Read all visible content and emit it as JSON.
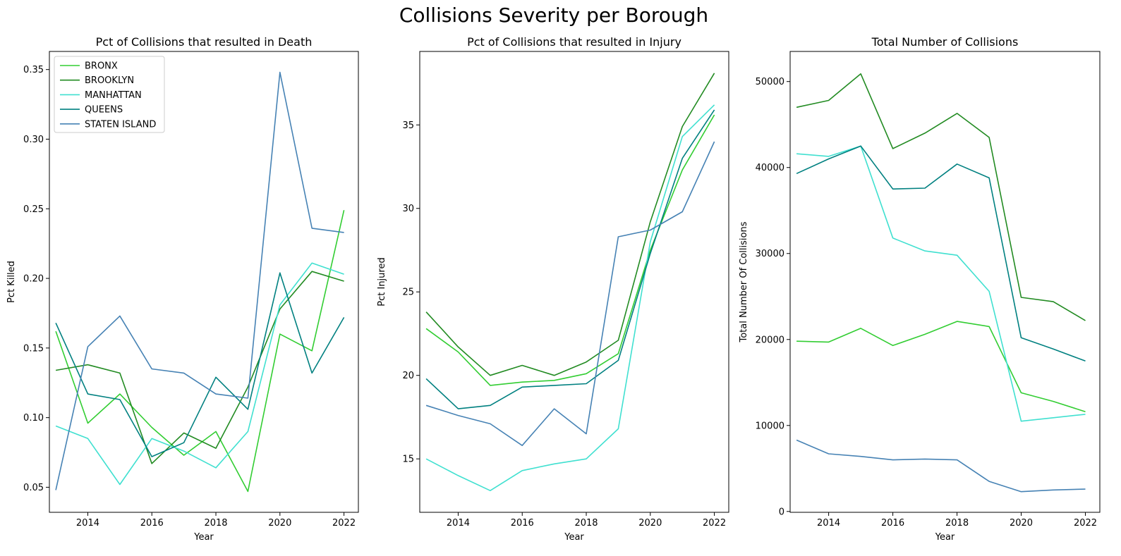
{
  "figure": {
    "title": "Collisions Severity per Borough"
  },
  "series_colors": {
    "BRONX": "#32cd32",
    "BROOKLYN": "#228b22",
    "MANHATTAN": "#40e0d0",
    "QUEENS": "#008080",
    "STATEN ISLAND": "#4682b4"
  },
  "chart_data": [
    {
      "type": "line",
      "title": "Pct of Collisions that resulted in Death",
      "xlabel": "Year",
      "ylabel": "Pct Killed",
      "xlim": [
        2012.8,
        2022.45
      ],
      "ylim": [
        0.032,
        0.363
      ],
      "xticks": [
        2014,
        2016,
        2018,
        2020,
        2022
      ],
      "yticks": [
        0.05,
        0.1,
        0.15,
        0.2,
        0.25,
        0.3,
        0.35
      ],
      "ytick_labels": [
        "0.05",
        "0.10",
        "0.15",
        "0.20",
        "0.25",
        "0.30",
        "0.35"
      ],
      "grid": false,
      "legend": "top-left",
      "x": [
        2013,
        2014,
        2015,
        2016,
        2017,
        2018,
        2019,
        2020,
        2021,
        2022
      ],
      "series": [
        {
          "name": "BRONX",
          "values": [
            0.162,
            0.096,
            0.117,
            0.093,
            0.073,
            0.09,
            0.047,
            0.16,
            0.148,
            0.249
          ]
        },
        {
          "name": "BROOKLYN",
          "values": [
            0.134,
            0.138,
            0.132,
            0.067,
            0.089,
            0.078,
            0.122,
            0.178,
            0.205,
            0.198
          ]
        },
        {
          "name": "MANHATTAN",
          "values": [
            0.094,
            0.085,
            0.052,
            0.085,
            0.076,
            0.064,
            0.09,
            0.181,
            0.211,
            0.203
          ]
        },
        {
          "name": "QUEENS",
          "values": [
            0.168,
            0.117,
            0.113,
            0.072,
            0.082,
            0.129,
            0.106,
            0.204,
            0.132,
            0.172
          ]
        },
        {
          "name": "STATEN ISLAND",
          "values": [
            0.048,
            0.151,
            0.173,
            0.135,
            0.132,
            0.117,
            0.114,
            0.348,
            0.236,
            0.233
          ]
        }
      ]
    },
    {
      "type": "line",
      "title": "Pct of Collisions that resulted in Injury",
      "xlabel": "Year",
      "ylabel": "Pct Injured",
      "xlim": [
        2012.8,
        2022.45
      ],
      "ylim": [
        11.8,
        39.4
      ],
      "xticks": [
        2014,
        2016,
        2018,
        2020,
        2022
      ],
      "yticks": [
        15,
        20,
        25,
        30,
        35
      ],
      "ytick_labels": [
        "15",
        "20",
        "25",
        "30",
        "35"
      ],
      "grid": false,
      "x": [
        2013,
        2014,
        2015,
        2016,
        2017,
        2018,
        2019,
        2020,
        2021,
        2022
      ],
      "series": [
        {
          "name": "BRONX",
          "values": [
            22.8,
            21.4,
            19.4,
            19.6,
            19.7,
            20.1,
            21.3,
            27.5,
            32.3,
            35.6
          ]
        },
        {
          "name": "BROOKLYN",
          "values": [
            23.8,
            21.7,
            20.0,
            20.6,
            20.0,
            20.8,
            22.1,
            29.2,
            34.9,
            38.1
          ]
        },
        {
          "name": "MANHATTAN",
          "values": [
            15.0,
            14.0,
            13.1,
            14.3,
            14.7,
            15.0,
            16.8,
            28.0,
            34.3,
            36.2
          ]
        },
        {
          "name": "QUEENS",
          "values": [
            19.8,
            18.0,
            18.2,
            19.3,
            19.4,
            19.5,
            20.9,
            27.3,
            33.0,
            35.9
          ]
        },
        {
          "name": "STATEN ISLAND",
          "values": [
            18.2,
            17.6,
            17.1,
            15.8,
            18.0,
            16.5,
            28.3,
            28.7,
            29.8,
            34.0
          ]
        }
      ]
    },
    {
      "type": "line",
      "title": "Total Number of Collisions",
      "xlabel": "Year",
      "ylabel": "Total Number Of Collisions",
      "xlim": [
        2012.8,
        2022.45
      ],
      "ylim": [
        -100,
        53500
      ],
      "xticks": [
        2014,
        2016,
        2018,
        2020,
        2022
      ],
      "yticks": [
        0,
        10000,
        20000,
        30000,
        40000,
        50000
      ],
      "ytick_labels": [
        "0",
        "10000",
        "20000",
        "30000",
        "40000",
        "50000"
      ],
      "grid": false,
      "x": [
        2013,
        2014,
        2015,
        2016,
        2017,
        2018,
        2019,
        2020,
        2021,
        2022
      ],
      "series": [
        {
          "name": "BRONX",
          "values": [
            19800,
            19700,
            21300,
            19300,
            20600,
            22100,
            21500,
            13800,
            12800,
            11600
          ]
        },
        {
          "name": "BROOKLYN",
          "values": [
            47000,
            47800,
            50900,
            42200,
            44000,
            46300,
            43500,
            24900,
            24400,
            22200
          ]
        },
        {
          "name": "MANHATTAN",
          "values": [
            41600,
            41300,
            42500,
            31800,
            30300,
            29800,
            25600,
            10500,
            10900,
            11300
          ]
        },
        {
          "name": "QUEENS",
          "values": [
            39300,
            41000,
            42500,
            37500,
            37600,
            40400,
            38800,
            20200,
            18900,
            17500
          ]
        },
        {
          "name": "STATEN ISLAND",
          "values": [
            8300,
            6700,
            6400,
            6000,
            6100,
            6000,
            3500,
            2300,
            2500,
            2600
          ]
        }
      ]
    }
  ]
}
